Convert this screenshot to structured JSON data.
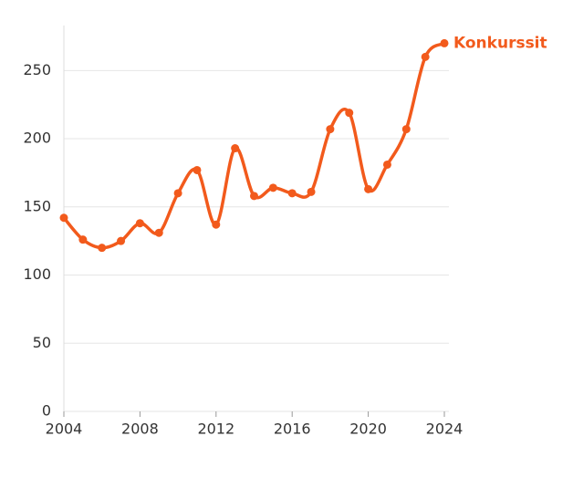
{
  "chart_data": {
    "type": "line",
    "x": [
      2004,
      2005,
      2006,
      2007,
      2008,
      2009,
      2010,
      2011,
      2012,
      2013,
      2014,
      2015,
      2016,
      2017,
      2018,
      2019,
      2020,
      2021,
      2022,
      2023,
      2024
    ],
    "series": [
      {
        "name": "Konkurssit",
        "color": "#f25a1c",
        "values": [
          142,
          126,
          120,
          125,
          138,
          131,
          160,
          177,
          137,
          193,
          158,
          164,
          160,
          161,
          207,
          219,
          163,
          181,
          207,
          260,
          270
        ]
      }
    ],
    "xlim": [
      2004,
      2024
    ],
    "xticks": [
      2004,
      2008,
      2012,
      2016,
      2020,
      2024
    ],
    "ylim": [
      0,
      283
    ],
    "yticks": [
      0,
      50,
      100,
      150,
      200,
      250
    ],
    "grid": true
  }
}
